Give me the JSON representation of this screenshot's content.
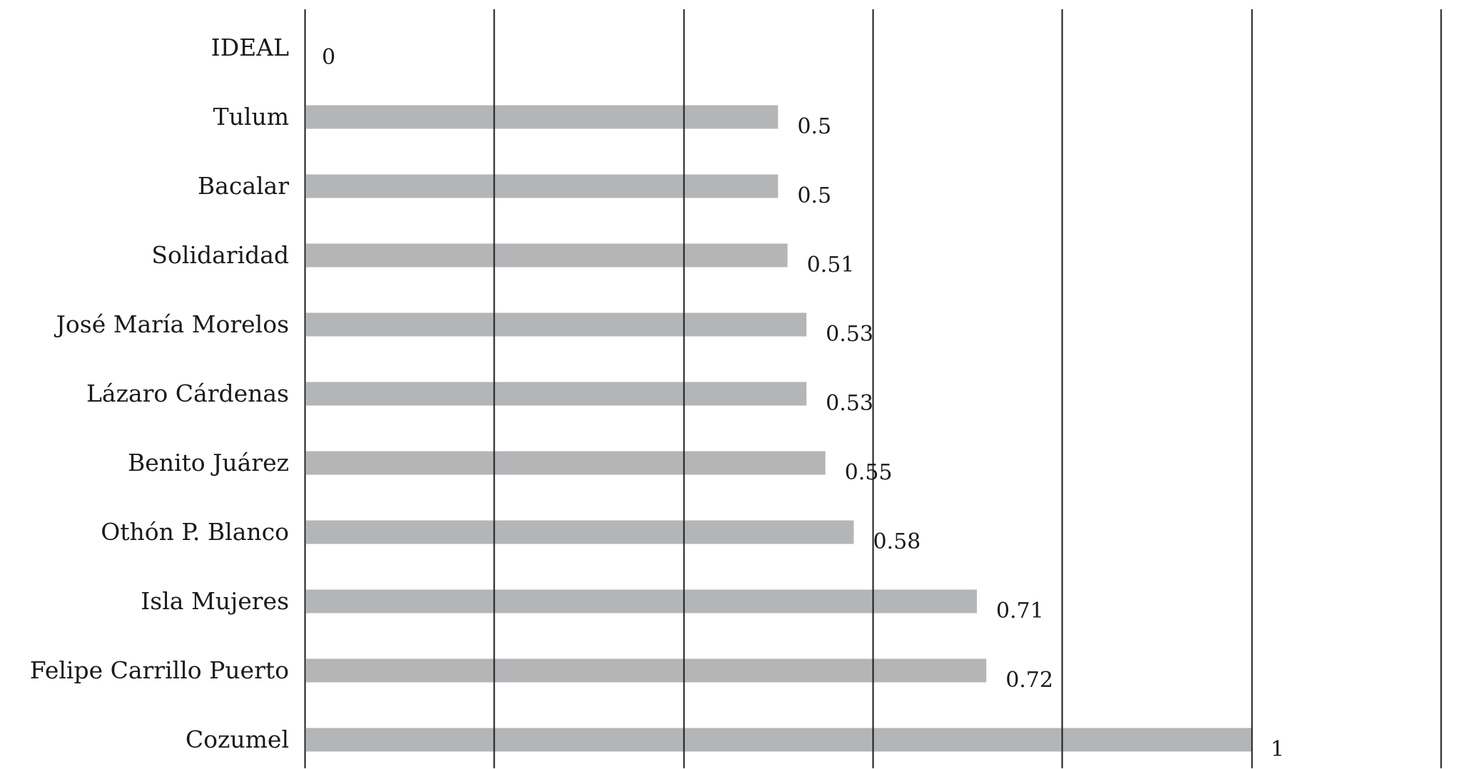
{
  "chart_data": {
    "type": "bar",
    "orientation": "horizontal",
    "title": "",
    "xlabel": "",
    "ylabel": "",
    "categories": [
      "IDEAL",
      "Tulum",
      "Bacalar",
      "Solidaridad",
      "José María Morelos",
      "Lázaro Cárdenas",
      "Benito Juárez",
      "Othón P. Blanco",
      "Isla Mujeres",
      "Felipe Carrillo Puerto",
      "Cozumel"
    ],
    "values": [
      0,
      0.5,
      0.5,
      0.51,
      0.53,
      0.53,
      0.55,
      0.58,
      0.71,
      0.72,
      1
    ],
    "value_labels": [
      "0",
      "0.5",
      "0.5",
      "0.51",
      "0.53",
      "0.53",
      "0.55",
      "0.58",
      "0.71",
      "0.72",
      "1"
    ],
    "xlim": [
      0,
      1.2
    ],
    "gridlines_at": [
      0,
      0.2,
      0.4,
      0.6,
      0.8,
      1.0,
      1.2
    ],
    "grid": true,
    "x_tick_labels_shown": false,
    "legend": "none",
    "bar_color": "#b4b5b7",
    "grid_color": "#1a1a1a"
  }
}
